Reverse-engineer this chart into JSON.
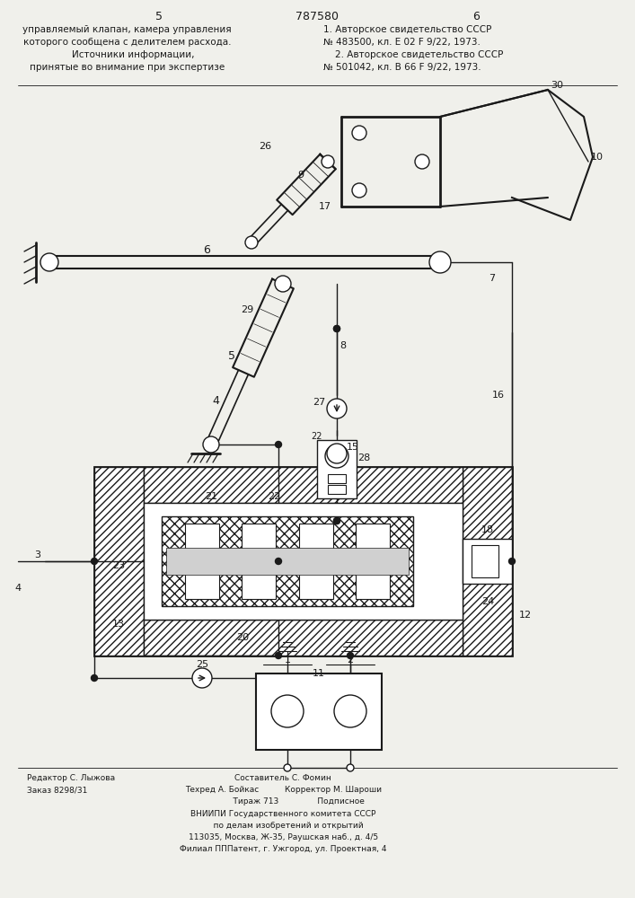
{
  "bg_color": "#f0f0eb",
  "line_color": "#1a1a1a",
  "title_top_left": "5",
  "title_top_center": "787580",
  "title_top_right": "6",
  "text_top_left": "управляемый клапан, камера управления\nкоторого сообщена с делителем расхода.\n    Источники информации,\nпринятые во внимание при экспертизе",
  "text_top_right": "1. Авторское свидетельство СССР\n№ 483500, кл. Е 02 F 9/22, 1973.\n    2. Авторское свидетельство СССР\n№ 501042, кл. В 66 F 9/22, 1973.",
  "text_bottom_left": "Редактор С. Лыжова\nЗаказ 8298/31",
  "text_bottom_center": "Составитель С. Фомин\nТехред А. Бойкас          Корректор М. Шароши\n            Тираж 713               Подписное\nВНИИПИ Государственного комитета СССР\n    по делам изобретений и открытий\n113035, Москва, Ж-35, Раушская наб., д. 4/5\nФилиал ПППатент, г. Ужгород, ул. Проектная, 4"
}
